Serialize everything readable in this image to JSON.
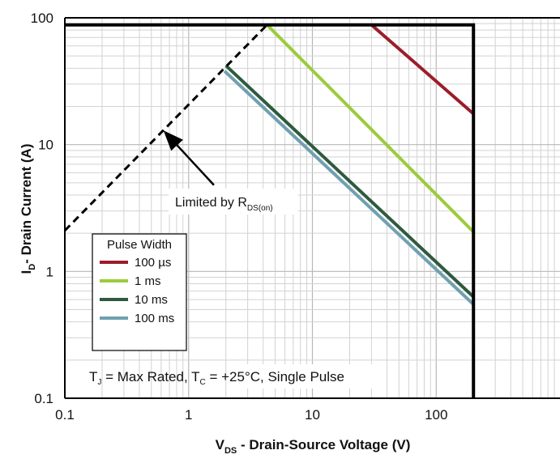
{
  "chart_data": {
    "type": "line",
    "title": "",
    "xscale": "log",
    "yscale": "log",
    "xlim": [
      0.1,
      1000
    ],
    "ylim": [
      0.1,
      100
    ],
    "grid": true,
    "xticks": [
      "0.1",
      "1",
      "10",
      "100"
    ],
    "yticks": [
      "0.1",
      "1",
      "10",
      "100"
    ],
    "xlabel": {
      "main": "V",
      "sub": "DS",
      "rest": " - Drain-Source Voltage (V)"
    },
    "ylabel": {
      "main": "I",
      "sub": "D",
      "rest": "- Drain Current (A)"
    },
    "legend": {
      "title": "Pulse Width",
      "placement": "lower-left",
      "entries": [
        {
          "label": "100 µs",
          "color": "#9b1d2a"
        },
        {
          "label": "1 ms",
          "color": "#9ccb3b"
        },
        {
          "label": "10 ms",
          "color": "#2e5a3e"
        },
        {
          "label": "100 ms",
          "color": "#6fa0b0"
        }
      ]
    },
    "series": [
      {
        "name": "100 µs",
        "color": "#9b1d2a",
        "x": [
          30,
          200
        ],
        "y": [
          88,
          17.5
        ]
      },
      {
        "name": "1 ms",
        "color": "#9ccb3b",
        "x": [
          4.3,
          200
        ],
        "y": [
          88,
          2.05
        ]
      },
      {
        "name": "10 ms",
        "color": "#2e5a3e",
        "x": [
          2,
          200
        ],
        "y": [
          42,
          0.63
        ]
      },
      {
        "name": "100 ms",
        "color": "#6fa0b0",
        "x": [
          1.95,
          200
        ],
        "y": [
          38,
          0.55
        ]
      }
    ],
    "limit_line": {
      "style": "dashed",
      "color": "#000000",
      "x": [
        0.1,
        4.3
      ],
      "y": [
        2.1,
        88
      ]
    },
    "boundary": {
      "color": "#000000",
      "x": [
        0.1,
        200,
        200
      ],
      "y": [
        88,
        88,
        0.1
      ]
    },
    "annotation": {
      "text_main": "Limited by R",
      "text_sub": "DS(on)",
      "arrow_from": [
        1.6,
        4.8
      ],
      "arrow_to": [
        0.62,
        13
      ]
    },
    "note": {
      "parts": [
        {
          "t": "T",
          "sub": false
        },
        {
          "t": "J",
          "sub": true
        },
        {
          "t": " = Max Rated, T",
          "sub": false
        },
        {
          "t": "C",
          "sub": true
        },
        {
          "t": " = +25°C, Single Pulse",
          "sub": false
        }
      ]
    }
  }
}
